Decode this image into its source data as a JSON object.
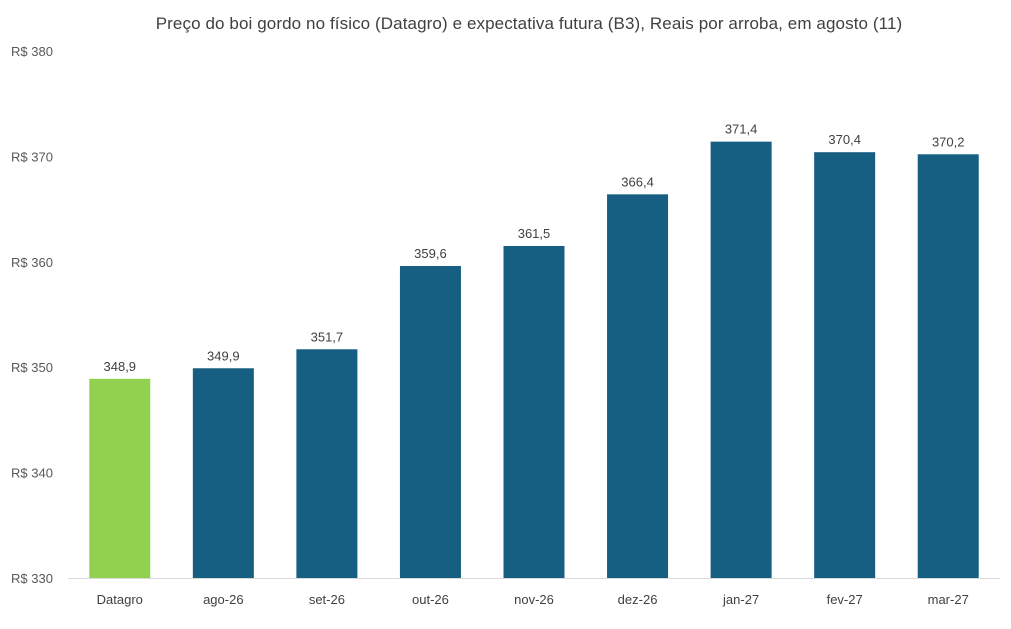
{
  "chart_data": {
    "type": "bar",
    "title": "Preço do boi gordo no físico (Datagro)  e expectativa futura (B3), Reais por arroba, em agosto (11)",
    "categories": [
      "Datagro",
      "ago-26",
      "set-26",
      "out-26",
      "nov-26",
      "dez-26",
      "jan-27",
      "fev-27",
      "mar-27"
    ],
    "values": [
      348.9,
      349.9,
      351.7,
      359.6,
      361.5,
      366.4,
      371.4,
      370.4,
      370.2
    ],
    "value_labels": [
      "348,9",
      "349,9",
      "351,7",
      "359,6",
      "361,5",
      "366,4",
      "371,4",
      "370,4",
      "370,2"
    ],
    "ylim": [
      330,
      380
    ],
    "y_ticks": [
      330,
      340,
      350,
      360,
      370,
      380
    ],
    "y_tick_labels": [
      "R$ 330",
      "R$ 340",
      "R$ 350",
      "R$ 360",
      "R$ 370",
      "R$ 380"
    ],
    "bar_colors": [
      "#92d050",
      "#175f82",
      "#175f82",
      "#175f82",
      "#175f82",
      "#175f82",
      "#175f82",
      "#175f82",
      "#175f82"
    ],
    "grid": false,
    "legend": "none"
  }
}
